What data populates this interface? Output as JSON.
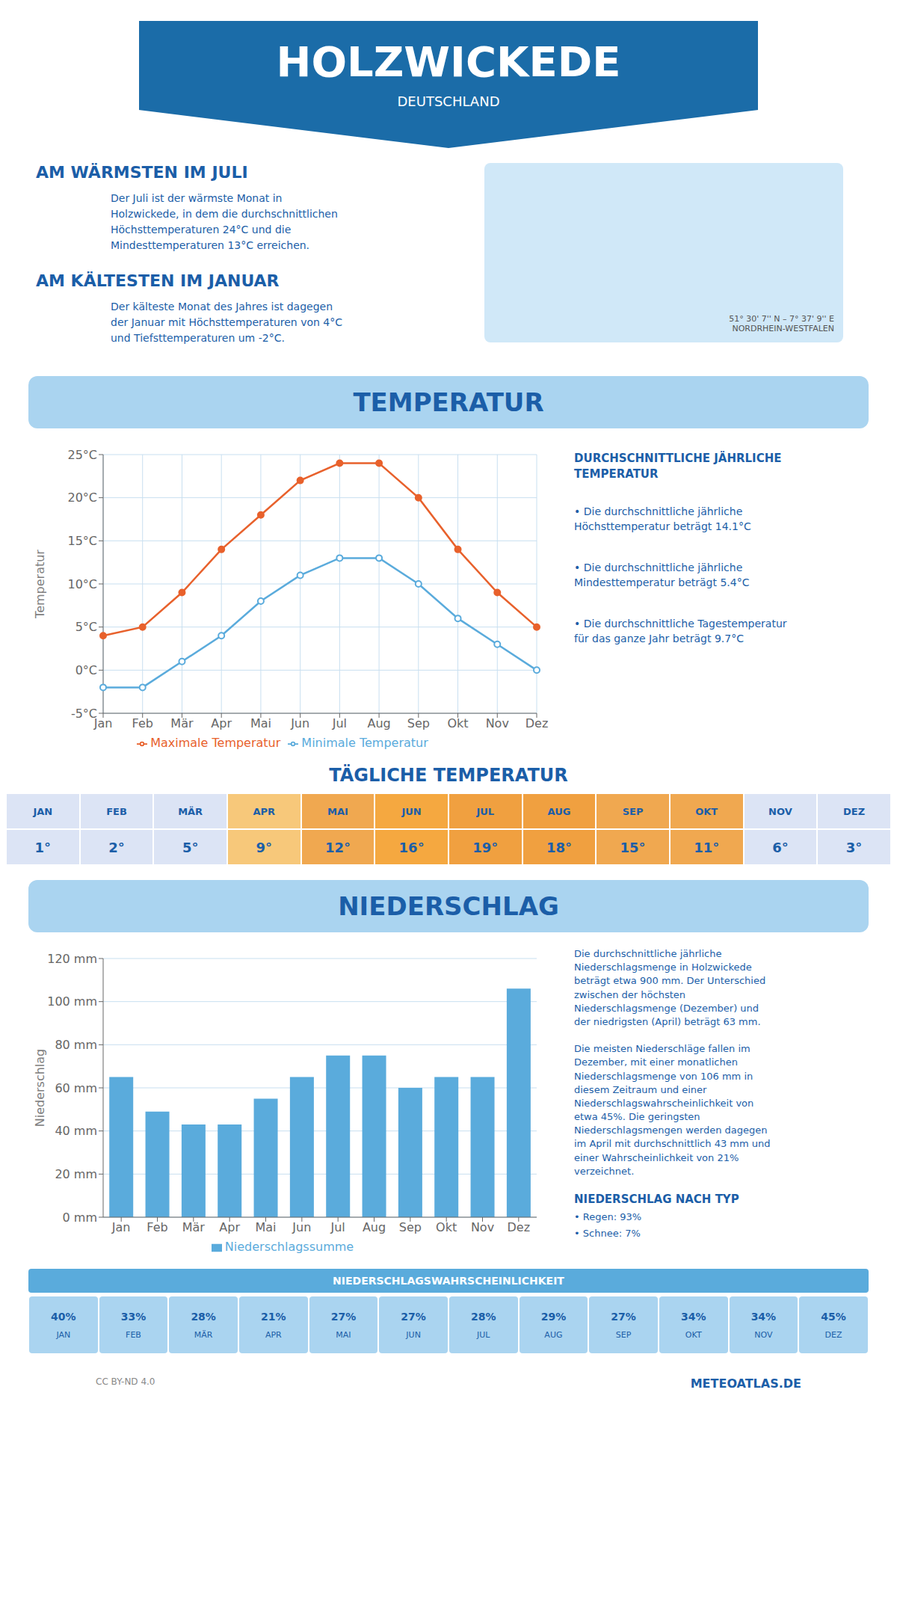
{
  "title": "HOLZWICKEDE",
  "subtitle": "DEUTSCHLAND",
  "annotations": [
    "AM WÄRMSTEN IM JULI",
    "Der Juli ist der wärmste Monat in\nHolzwickede, in dem die durchschnittlichen\nHöchsttemperaturen 24°C und die\nMindesttemperaturen 13°C erreichen.",
    "AM KÄLTESTEN IM JANUAR",
    "Der kälteste Monat des Jahres ist dagegen\nder Januar mit Höchsttemperaturen von 4°C\nund Tiefsttemperaturen um -2°C.",
    "51° 30' 7'' N – 7° 37' 9'' E\nNORDRHEIN-WESTFALEN",
    "CC BY-ND 4.0",
    "METEOATLAS.DE"
  ],
  "chart_data": [
    {
      "type": "line",
      "title": "TEMPERATUR",
      "categories": [
        "Jan",
        "Feb",
        "Mär",
        "Apr",
        "Mai",
        "Jun",
        "Jul",
        "Aug",
        "Sep",
        "Okt",
        "Nov",
        "Dez"
      ],
      "series": [
        {
          "name": "Maximale Temperatur",
          "color": "#e8612c",
          "marker": "circle",
          "values": [
            4,
            5,
            9,
            14,
            18,
            22,
            24,
            24,
            20,
            14,
            9,
            5
          ]
        },
        {
          "name": "Minimale Temperatur",
          "color": "#5aabdc",
          "marker": "open_circle",
          "values": [
            -2,
            -2,
            1,
            4,
            8,
            11,
            13,
            13,
            10,
            6,
            3,
            0
          ]
        }
      ],
      "ylabel": "Temperatur",
      "ylim": [
        -5,
        25
      ],
      "yticks": [
        {
          "value": -5,
          "label": "-5°C"
        },
        {
          "value": 0,
          "label": "0°C"
        },
        {
          "value": 5,
          "label": "5°C"
        },
        {
          "value": 10,
          "label": "10°C"
        },
        {
          "value": 15,
          "label": "15°C"
        },
        {
          "value": 20,
          "label": "20°C"
        },
        {
          "value": 25,
          "label": "25°C"
        }
      ],
      "grid": true,
      "legend": "bottom",
      "annotations": [
        "DURCHSCHNITTLICHE JÄHRLICHE\nTEMPERATUR",
        "• Die durchschnittliche jährliche\nHöchsttemperatur beträgt 14.1°C",
        "• Die durchschnittliche jährliche\nMindesttemperatur beträgt 5.4°C",
        "• Die durchschnittliche Tagestemperatur\nfür das ganze Jahr beträgt 9.7°C"
      ]
    },
    {
      "type": "table",
      "title": "TÄGLICHE TEMPERATUR",
      "categories": [
        "JAN",
        "FEB",
        "MÄR",
        "APR",
        "MAI",
        "JUN",
        "JUL",
        "AUG",
        "SEP",
        "OKT",
        "NOV",
        "DEZ"
      ],
      "values": [
        1,
        2,
        5,
        9,
        12,
        16,
        19,
        18,
        15,
        11,
        6,
        3
      ],
      "value_labels": [
        "1°",
        "2°",
        "5°",
        "9°",
        "12°",
        "16°",
        "19°",
        "18°",
        "15°",
        "11°",
        "6°",
        "3°"
      ],
      "colors": [
        "#dce4f5",
        "#dce4f5",
        "#dce4f5",
        "#f7c87a",
        "#f0a850",
        "#f5a840",
        "#f0a040",
        "#f0a040",
        "#f0a850",
        "#f0a850",
        "#dce4f5",
        "#dce4f5"
      ],
      "data_labels": true
    },
    {
      "type": "bar",
      "title": "NIEDERSCHLAG",
      "categories": [
        "Jan",
        "Feb",
        "Mär",
        "Apr",
        "Mai",
        "Jun",
        "Jul",
        "Aug",
        "Sep",
        "Okt",
        "Nov",
        "Dez"
      ],
      "series": [
        {
          "name": "Niederschlagssumme",
          "color": "#5aabdc",
          "values": [
            65,
            49,
            43,
            43,
            55,
            65,
            75,
            75,
            60,
            65,
            65,
            106
          ]
        }
      ],
      "ylabel": "Niederschlag",
      "ylim": [
        0,
        120
      ],
      "yticks": [
        {
          "value": 0,
          "label": "0 mm"
        },
        {
          "value": 20,
          "label": "20 mm"
        },
        {
          "value": 40,
          "label": "40 mm"
        },
        {
          "value": 60,
          "label": "60 mm"
        },
        {
          "value": 80,
          "label": "80 mm"
        },
        {
          "value": 100,
          "label": "100 mm"
        },
        {
          "value": 120,
          "label": "120 mm"
        }
      ],
      "grid": "y",
      "legend": "bottom",
      "annotations": [
        "Die durchschnittliche jährliche\nNiederschlagsmenge in Holzwickede\nbeträgt etwa 900 mm. Der Unterschied\nzwischen der höchsten\nNiederschlagsmenge (Dezember) und\nder niedrigsten (April) beträgt 63 mm.",
        "Die meisten Niederschläge fallen im\nDezember, mit einer monatlichen\nNiederschlagsmenge von 106 mm in\ndiesem Zeitraum und einer\nNiederschlagswahrscheinlichkeit von\netwa 45%. Die geringsten\nNiederschlagsmengen werden dagegen\nim April mit durchschnittlich 43 mm und\neiner Wahrscheinlichkeit von 21%\nverzeichnet.",
        "NIEDERSCHLAG NACH TYP",
        "• Regen: 93%",
        "• Schnee: 7%"
      ]
    },
    {
      "type": "table",
      "title": "NIEDERSCHLAGSWAHRSCHEINLICHKEIT",
      "categories": [
        "JAN",
        "FEB",
        "MÄR",
        "APR",
        "MAI",
        "JUN",
        "JUL",
        "AUG",
        "SEP",
        "OKT",
        "NOV",
        "DEZ"
      ],
      "values": [
        40,
        33,
        28,
        21,
        27,
        27,
        28,
        29,
        27,
        34,
        34,
        45
      ],
      "value_labels": [
        "40%",
        "33%",
        "28%",
        "21%",
        "27%",
        "27%",
        "28%",
        "29%",
        "27%",
        "34%",
        "34%",
        "45%"
      ],
      "color": "#aad4f0",
      "data_labels": true
    }
  ]
}
